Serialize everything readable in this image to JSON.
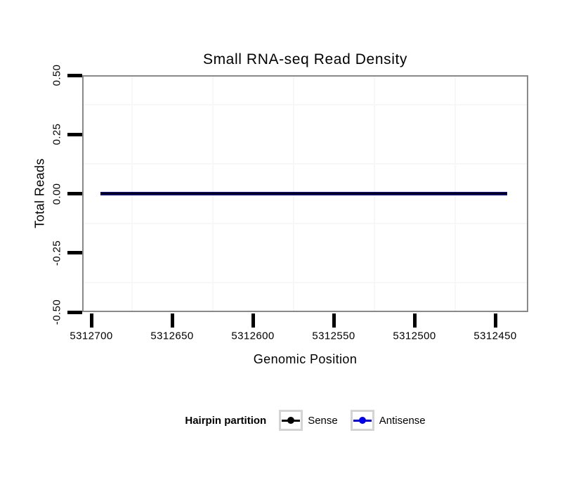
{
  "chart_data": {
    "type": "line",
    "title": "Small RNA-seq Read Density",
    "xlabel": "Genomic Position",
    "ylabel": "Total Reads",
    "x_axis": {
      "tick_labels": [
        "5312700",
        "5312650",
        "5312600",
        "5312550",
        "5312500",
        "5312450"
      ],
      "tick_values": [
        5312700,
        5312650,
        5312600,
        5312550,
        5312500,
        5312450
      ],
      "reversed": true
    },
    "y_axis": {
      "tick_labels": [
        "0.50",
        "0.25",
        "0.00",
        "-0.25",
        "-0.50"
      ],
      "tick_values": [
        0.5,
        0.25,
        0.0,
        -0.25,
        -0.5
      ],
      "ylim": [
        -0.5,
        0.5
      ]
    },
    "series": [
      {
        "name": "Sense",
        "color": "#000000",
        "y_constant": 0,
        "x_start": 5312696,
        "x_end": 5312444
      },
      {
        "name": "Antisense",
        "color": "#0000EE",
        "y_constant": 0,
        "x_start": 5312696,
        "x_end": 5312444
      }
    ],
    "legend": {
      "title": "Hairpin partition",
      "position": "bottom",
      "entries": [
        {
          "label": "Sense",
          "color": "#000000"
        },
        {
          "label": "Antisense",
          "color": "#0000EE"
        }
      ]
    },
    "grid": {
      "minor_visible": true,
      "minor_color": "#F7F7F7",
      "major_visible": false
    },
    "panel_border_color": "#898989",
    "background": "#FFFFFF"
  }
}
